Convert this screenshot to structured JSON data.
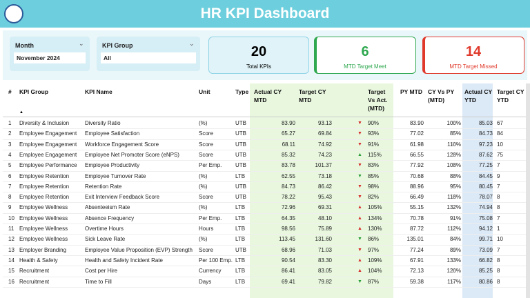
{
  "header": {
    "title": "HR KPI Dashboard"
  },
  "filters": [
    {
      "label": "Month",
      "value": "November 2024"
    },
    {
      "label": "KPI Group",
      "value": "All"
    }
  ],
  "cards": [
    {
      "value": "20",
      "label": "Total KPIs",
      "color": "#000000"
    },
    {
      "value": "6",
      "label": "MTD Target Meet",
      "color": "#2fa84f"
    },
    {
      "value": "14",
      "label": "MTD Target Missed",
      "color": "#e0392b"
    }
  ],
  "table": {
    "columns": [
      "#",
      "KPI Group",
      "KPI Name",
      "Unit",
      "Type",
      "Actual CY MTD",
      "Target CY MTD",
      "Target Vs Act. (MTD)",
      "PY MTD",
      "CY Vs PY (MTD)",
      "Actual CY YTD",
      "Target CY YTD"
    ],
    "rows": [
      [
        "1",
        "Diversity & Inclusion",
        "Diversity Ratio",
        "(%)",
        "UTB",
        "83.90",
        "93.13",
        {
          "symbol": "▼",
          "color": "red"
        },
        "90%",
        "83.90",
        "100%",
        "85.03",
        "67"
      ],
      [
        "2",
        "Employee Engagement",
        "Employee Satisfaction",
        "Score",
        "UTB",
        "65.27",
        "69.84",
        {
          "symbol": "▼",
          "color": "red"
        },
        "93%",
        "77.02",
        "85%",
        "84.73",
        "84"
      ],
      [
        "3",
        "Employee Engagement",
        "Workforce Engagement Score",
        "Score",
        "UTB",
        "68.11",
        "74.92",
        {
          "symbol": "▼",
          "color": "red"
        },
        "91%",
        "61.98",
        "110%",
        "97.23",
        "10"
      ],
      [
        "4",
        "Employee Engagement",
        "Employee Net Promoter Score (eNPS)",
        "Score",
        "UTB",
        "85.32",
        "74.23",
        {
          "symbol": "▲",
          "color": "green"
        },
        "115%",
        "66.55",
        "128%",
        "87.62",
        "75"
      ],
      [
        "5",
        "Employee Performance",
        "Employee Productivity",
        "Per Emp.",
        "UTB",
        "83.78",
        "101.37",
        {
          "symbol": "▼",
          "color": "red"
        },
        "83%",
        "77.92",
        "108%",
        "77.25",
        "7"
      ],
      [
        "6",
        "Employee Retention",
        "Employee Turnover Rate",
        "(%)",
        "LTB",
        "62.55",
        "73.18",
        {
          "symbol": "▼",
          "color": "green"
        },
        "85%",
        "70.68",
        "88%",
        "84.45",
        "9"
      ],
      [
        "7",
        "Employee Retention",
        "Retention Rate",
        "(%)",
        "UTB",
        "84.73",
        "86.42",
        {
          "symbol": "▼",
          "color": "red"
        },
        "98%",
        "88.96",
        "95%",
        "80.45",
        "7"
      ],
      [
        "8",
        "Employee Retention",
        "Exit Interview Feedback Score",
        "Score",
        "UTB",
        "78.22",
        "95.43",
        {
          "symbol": "▼",
          "color": "red"
        },
        "82%",
        "66.49",
        "118%",
        "78.07",
        "8"
      ],
      [
        "9",
        "Employee Wellness",
        "Absenteeism Rate",
        "(%)",
        "LTB",
        "72.96",
        "69.31",
        {
          "symbol": "▲",
          "color": "red"
        },
        "105%",
        "55.15",
        "132%",
        "74.94",
        "8"
      ],
      [
        "10",
        "Employee Wellness",
        "Absence Frequency",
        "Per Emp.",
        "LTB",
        "64.35",
        "48.10",
        {
          "symbol": "▲",
          "color": "red"
        },
        "134%",
        "70.78",
        "91%",
        "75.08",
        "7"
      ],
      [
        "11",
        "Employee Wellness",
        "Overtime Hours",
        "Hours",
        "LTB",
        "98.56",
        "75.89",
        {
          "symbol": "▲",
          "color": "red"
        },
        "130%",
        "87.72",
        "112%",
        "94.12",
        "1"
      ],
      [
        "12",
        "Employee Wellness",
        "Sick Leave Rate",
        "(%)",
        "LTB",
        "113.45",
        "131.60",
        {
          "symbol": "▼",
          "color": "green"
        },
        "86%",
        "135.01",
        "84%",
        "99.71",
        "10"
      ],
      [
        "13",
        "Employer Branding",
        "Employee Value Proposition (EVP) Strength",
        "Score",
        "UTB",
        "68.96",
        "71.03",
        {
          "symbol": "▼",
          "color": "red"
        },
        "97%",
        "77.24",
        "89%",
        "73.09",
        "7"
      ],
      [
        "14",
        "Health & Safety",
        "Health and Safety Incident Rate",
        "Per 100 Emp.",
        "LTB",
        "90.54",
        "83.30",
        {
          "symbol": "▲",
          "color": "red"
        },
        "109%",
        "67.91",
        "133%",
        "66.82",
        "8"
      ],
      [
        "15",
        "Recruitment",
        "Cost per Hire",
        "Currency",
        "LTB",
        "86.41",
        "83.05",
        {
          "symbol": "▲",
          "color": "red"
        },
        "104%",
        "72.13",
        "120%",
        "85.25",
        "8"
      ],
      [
        "16",
        "Recruitment",
        "Time to Fill",
        "Days",
        "LTB",
        "69.41",
        "79.82",
        {
          "symbol": "▼",
          "color": "green"
        },
        "87%",
        "59.38",
        "117%",
        "80.86",
        "8"
      ]
    ]
  }
}
